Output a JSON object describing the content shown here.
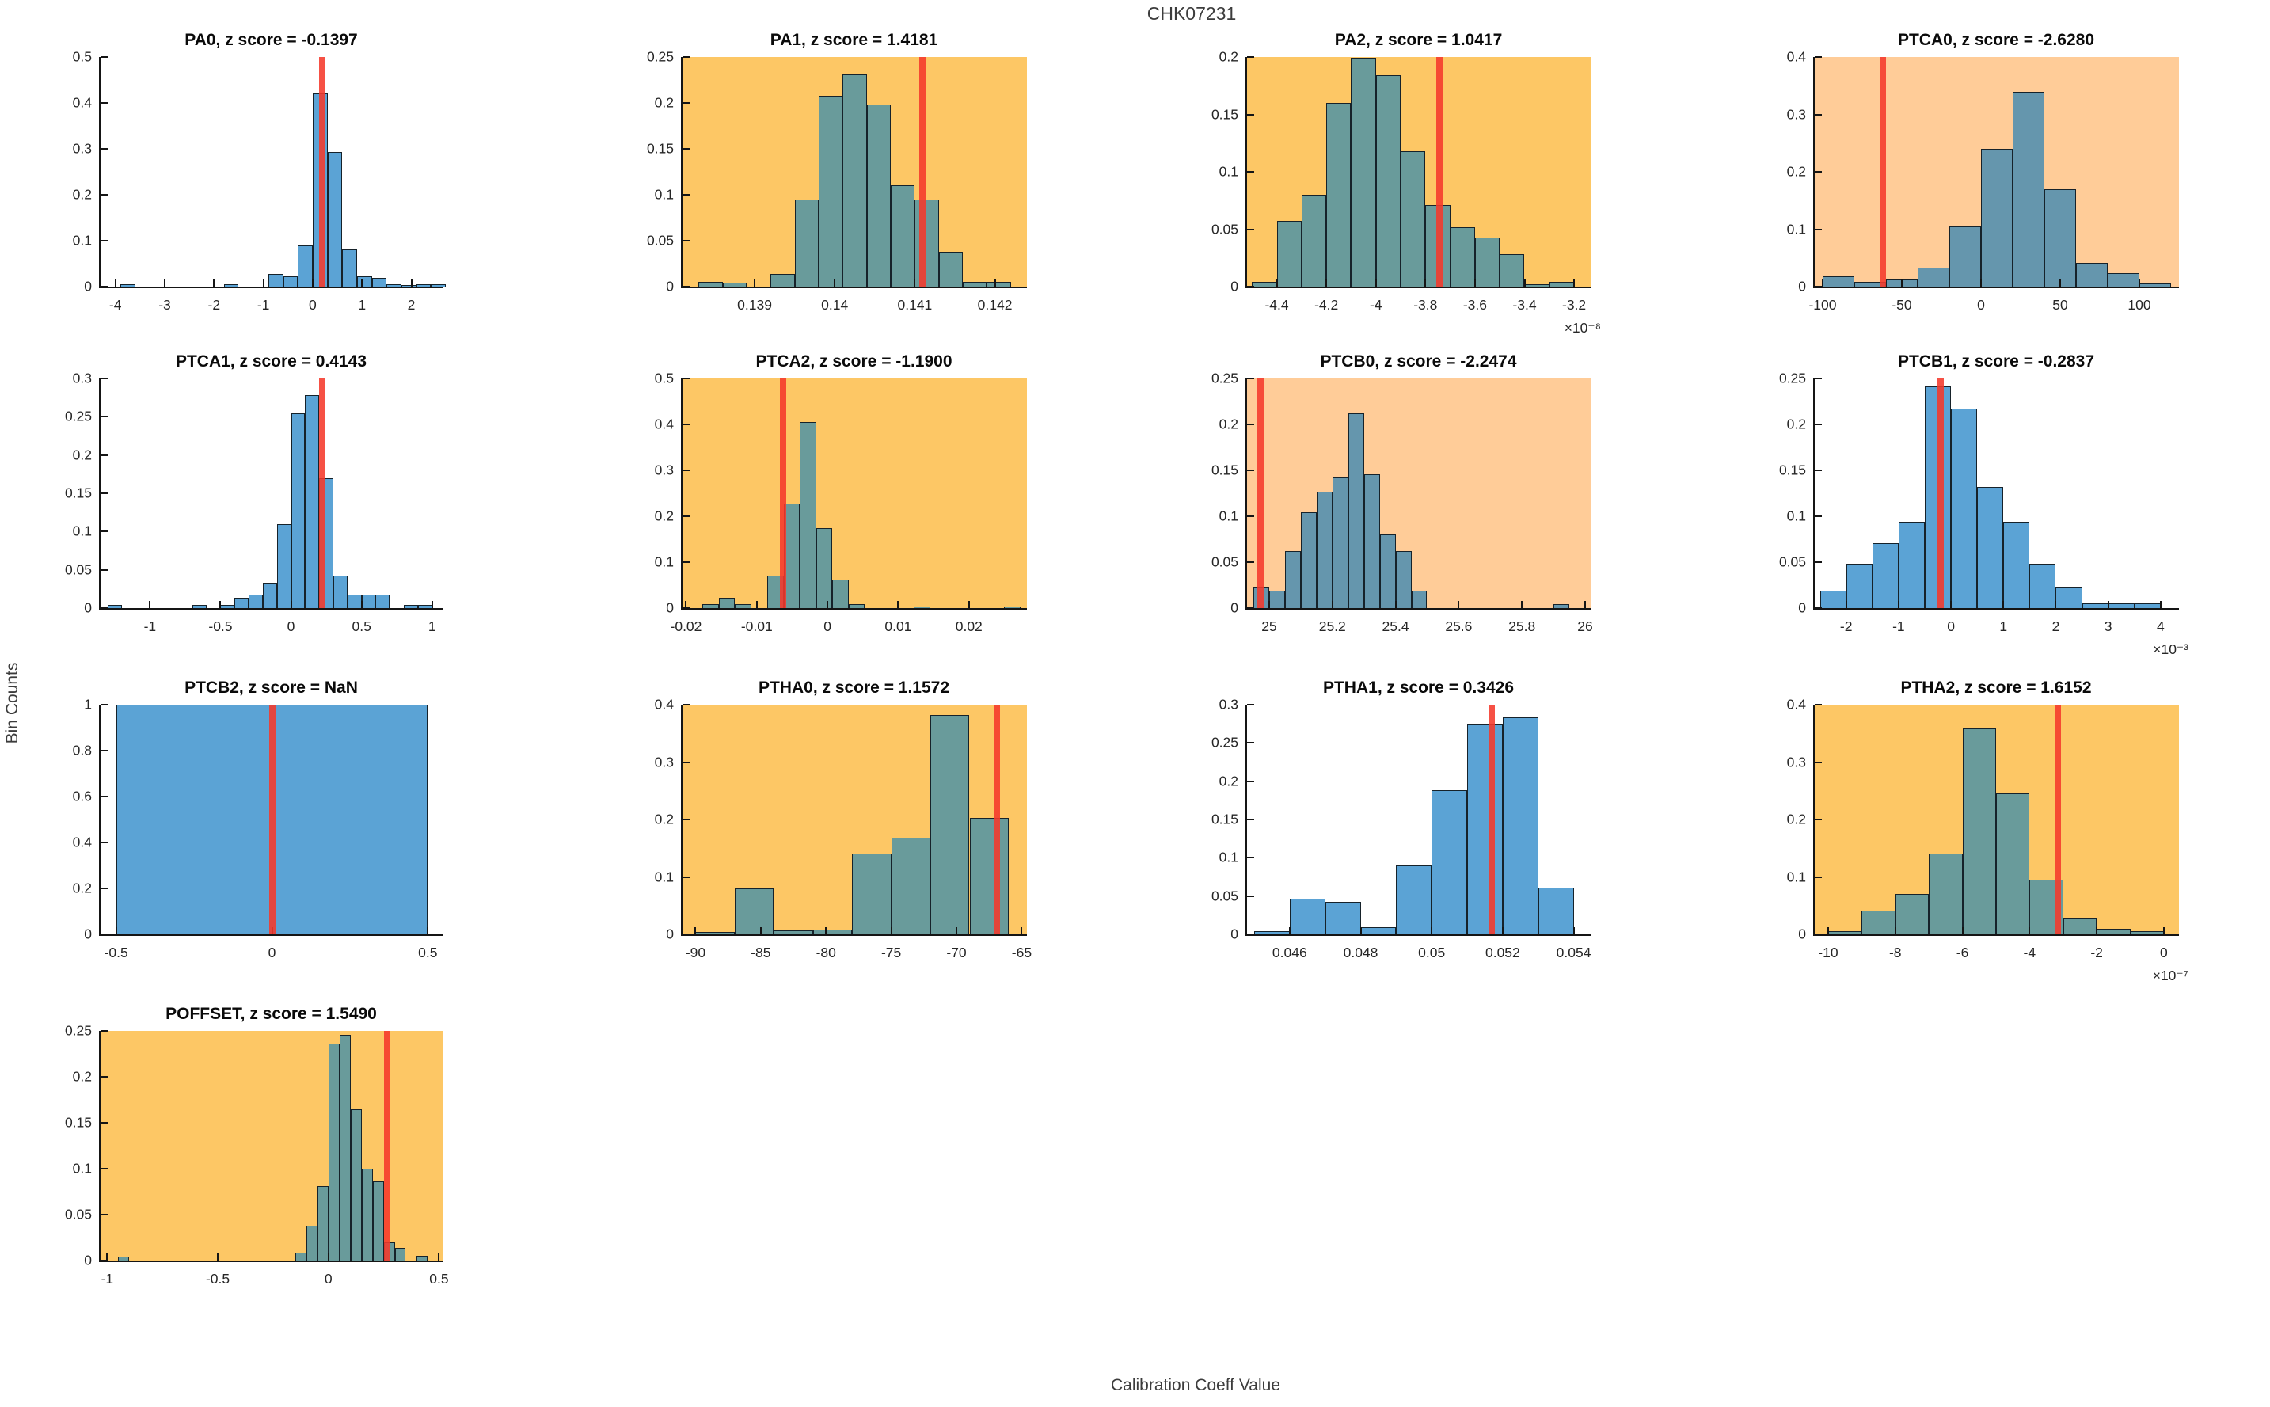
{
  "figure": {
    "title": "CHK07231",
    "xlabel": "Calibration Coeff Value",
    "ylabel": "Bin Counts"
  },
  "colors": {
    "bg_white": "#ffffff",
    "bg_gold": "#fdc765",
    "bg_peach": "#ffcc98",
    "bar_on_white": "#5ba3d5",
    "bar_on_gold": "#699b9b",
    "bar_on_peach": "#6596ad",
    "bar_edge": "#16222a",
    "red_line": "#f5392b",
    "axis": "#151515",
    "tick_text": "#262626",
    "title_text": "#0a0a0a",
    "figure_text": "#3c3c3c"
  },
  "chart_data": [
    {
      "type": "histogram",
      "label": "PA0",
      "z_score": "-0.1397",
      "background": "white",
      "xlim": [
        -4.3,
        2.65
      ],
      "ylim": [
        0,
        0.5
      ],
      "xticks": [
        -4,
        -3,
        -2,
        -1,
        0,
        1,
        2
      ],
      "yticks": [
        0,
        0.1,
        0.2,
        0.3,
        0.4,
        0.5
      ],
      "x_exponent": null,
      "red_line_x": 0.19,
      "bin_width": 0.3,
      "bins": [
        [
          -3.9,
          0.005
        ],
        [
          -1.8,
          0.005
        ],
        [
          -0.9,
          0.028
        ],
        [
          -0.6,
          0.022
        ],
        [
          -0.3,
          0.09
        ],
        [
          0,
          0.42
        ],
        [
          0.3,
          0.293
        ],
        [
          0.6,
          0.081
        ],
        [
          0.9,
          0.022
        ],
        [
          1.2,
          0.019
        ],
        [
          1.5,
          0.005
        ],
        [
          1.8,
          0.004
        ],
        [
          2.1,
          0.005
        ],
        [
          2.4,
          0.005
        ]
      ]
    },
    {
      "type": "histogram",
      "label": "PA1",
      "z_score": "1.4181",
      "background": "gold",
      "xlim": [
        0.1381,
        0.1424
      ],
      "ylim": [
        0,
        0.25
      ],
      "xticks": [
        0.139,
        0.14,
        0.141,
        0.142
      ],
      "yticks": [
        0,
        0.05,
        0.1,
        0.15,
        0.2,
        0.25
      ],
      "x_exponent": null,
      "red_line_x": 0.1411,
      "bin_width": 0.0003,
      "bins": [
        [
          0.1383,
          0.005
        ],
        [
          0.1386,
          0.004
        ],
        [
          0.1392,
          0.014
        ],
        [
          0.1395,
          0.095
        ],
        [
          0.1398,
          0.208
        ],
        [
          0.1401,
          0.231
        ],
        [
          0.1404,
          0.198
        ],
        [
          0.1407,
          0.11
        ],
        [
          0.141,
          0.095
        ],
        [
          0.1413,
          0.038
        ],
        [
          0.1416,
          0.005
        ],
        [
          0.1419,
          0.005
        ]
      ]
    },
    {
      "type": "histogram",
      "label": "PA2",
      "z_score": "1.0417",
      "background": "gold",
      "xlim": [
        -4.52,
        -3.13
      ],
      "ylim": [
        0,
        0.2
      ],
      "xticks": [
        -4.4,
        -4.2,
        -4,
        -3.8,
        -3.6,
        -3.4,
        -3.2
      ],
      "yticks": [
        0,
        0.05,
        0.1,
        0.15,
        0.2
      ],
      "x_exponent": "×10⁻⁸",
      "red_line_x": -3.745,
      "bin_width": 0.1,
      "bins": [
        [
          -4.5,
          0.004
        ],
        [
          -4.4,
          0.057
        ],
        [
          -4.3,
          0.08
        ],
        [
          -4.2,
          0.16
        ],
        [
          -4.1,
          0.199
        ],
        [
          -4.0,
          0.184
        ],
        [
          -3.9,
          0.118
        ],
        [
          -3.8,
          0.071
        ],
        [
          -3.7,
          0.052
        ],
        [
          -3.6,
          0.043
        ],
        [
          -3.5,
          0.028
        ],
        [
          -3.4,
          0.002
        ],
        [
          -3.3,
          0.004
        ]
      ]
    },
    {
      "type": "histogram",
      "label": "PTCA0",
      "z_score": "-2.6280",
      "background": "peach",
      "xlim": [
        -105,
        125
      ],
      "ylim": [
        0,
        0.4
      ],
      "xticks": [
        -100,
        -50,
        0,
        50,
        100
      ],
      "yticks": [
        0,
        0.1,
        0.2,
        0.3,
        0.4
      ],
      "x_exponent": null,
      "red_line_x": -62,
      "bin_width": 20,
      "bins": [
        [
          -100,
          0.018
        ],
        [
          -80,
          0.008
        ],
        [
          -60,
          0.013
        ],
        [
          -40,
          0.033
        ],
        [
          -20,
          0.105
        ],
        [
          0,
          0.24
        ],
        [
          20,
          0.34
        ],
        [
          40,
          0.17
        ],
        [
          60,
          0.042
        ],
        [
          80,
          0.023
        ],
        [
          100,
          0.005
        ]
      ]
    },
    {
      "type": "histogram",
      "label": "PTCA1",
      "z_score": "0.4143",
      "background": "white",
      "xlim": [
        -1.35,
        1.08
      ],
      "ylim": [
        0,
        0.3
      ],
      "xticks": [
        -1,
        -0.5,
        0,
        0.5,
        1
      ],
      "yticks": [
        0,
        0.05,
        0.1,
        0.15,
        0.2,
        0.25,
        0.3
      ],
      "x_exponent": null,
      "red_line_x": 0.22,
      "bin_width": 0.1,
      "bins": [
        [
          -1.3,
          0.004
        ],
        [
          -0.7,
          0.004
        ],
        [
          -0.5,
          0.004
        ],
        [
          -0.4,
          0.013
        ],
        [
          -0.3,
          0.018
        ],
        [
          -0.2,
          0.033
        ],
        [
          -0.1,
          0.11
        ],
        [
          0,
          0.255
        ],
        [
          0.1,
          0.278
        ],
        [
          0.2,
          0.17
        ],
        [
          0.3,
          0.042
        ],
        [
          0.4,
          0.018
        ],
        [
          0.5,
          0.018
        ],
        [
          0.6,
          0.018
        ],
        [
          0.8,
          0.004
        ],
        [
          0.9,
          0.004
        ]
      ]
    },
    {
      "type": "histogram",
      "label": "PTCA2",
      "z_score": "-1.1900",
      "background": "gold",
      "xlim": [
        -0.0205,
        0.0282
      ],
      "ylim": [
        0,
        0.5
      ],
      "xticks": [
        -0.02,
        -0.01,
        0,
        0.01,
        0.02
      ],
      "yticks": [
        0,
        0.1,
        0.2,
        0.3,
        0.4,
        0.5
      ],
      "x_exponent": null,
      "red_line_x": -0.0063,
      "bin_width": 0.0023,
      "bins": [
        [
          -0.0177,
          0.008
        ],
        [
          -0.0154,
          0.022
        ],
        [
          -0.0131,
          0.008
        ],
        [
          -0.0085,
          0.07
        ],
        [
          -0.0062,
          0.227
        ],
        [
          -0.0039,
          0.405
        ],
        [
          -0.0016,
          0.174
        ],
        [
          0.0007,
          0.062
        ],
        [
          0.003,
          0.009
        ],
        [
          0.0122,
          0.004
        ],
        [
          0.025,
          0.004
        ]
      ]
    },
    {
      "type": "histogram",
      "label": "PTCB0",
      "z_score": "-2.2474",
      "background": "peach",
      "xlim": [
        24.93,
        26.02
      ],
      "ylim": [
        0,
        0.25
      ],
      "xticks": [
        25,
        25.2,
        25.4,
        25.6,
        25.8,
        26
      ],
      "yticks": [
        0,
        0.05,
        0.1,
        0.15,
        0.2,
        0.25
      ],
      "x_exponent": null,
      "red_line_x": 24.972,
      "bin_width": 0.05,
      "bins": [
        [
          24.95,
          0.023
        ],
        [
          25.0,
          0.019
        ],
        [
          25.05,
          0.062
        ],
        [
          25.1,
          0.104
        ],
        [
          25.15,
          0.127
        ],
        [
          25.2,
          0.142
        ],
        [
          25.25,
          0.212
        ],
        [
          25.3,
          0.146
        ],
        [
          25.35,
          0.08
        ],
        [
          25.4,
          0.062
        ],
        [
          25.45,
          0.019
        ],
        [
          25.9,
          0.004
        ]
      ]
    },
    {
      "type": "histogram",
      "label": "PTCB1",
      "z_score": "-0.2837",
      "background": "white",
      "xlim": [
        -2.6,
        4.35
      ],
      "ylim": [
        0,
        0.25
      ],
      "xticks": [
        -2,
        -1,
        0,
        1,
        2,
        3,
        4
      ],
      "yticks": [
        0,
        0.05,
        0.1,
        0.15,
        0.2,
        0.25
      ],
      "x_exponent": "×10⁻³",
      "red_line_x": -0.2,
      "bin_width": 0.5,
      "bins": [
        [
          -2.5,
          0.019
        ],
        [
          -2.0,
          0.048
        ],
        [
          -1.5,
          0.071
        ],
        [
          -1.0,
          0.094
        ],
        [
          -0.5,
          0.241
        ],
        [
          0,
          0.217
        ],
        [
          0.5,
          0.132
        ],
        [
          1.0,
          0.094
        ],
        [
          1.5,
          0.048
        ],
        [
          2.0,
          0.023
        ],
        [
          2.5,
          0.005
        ],
        [
          3.0,
          0.005
        ],
        [
          3.5,
          0.005
        ]
      ]
    },
    {
      "type": "histogram",
      "label": "PTCB2",
      "z_score": "NaN",
      "background": "white",
      "xlim": [
        -0.55,
        0.55
      ],
      "ylim": [
        0,
        1
      ],
      "xticks": [
        -0.5,
        0,
        0.5
      ],
      "yticks": [
        0,
        0.2,
        0.4,
        0.6,
        0.8,
        1
      ],
      "x_exponent": null,
      "red_line_x": 0,
      "bin_width": 1.0,
      "bins": [
        [
          -0.5,
          1.0
        ]
      ]
    },
    {
      "type": "histogram",
      "label": "PTHA0",
      "z_score": "1.1572",
      "background": "gold",
      "xlim": [
        -91,
        -64.6
      ],
      "ylim": [
        0,
        0.4
      ],
      "xticks": [
        -90,
        -85,
        -80,
        -75,
        -70,
        -65
      ],
      "yticks": [
        0,
        0.1,
        0.2,
        0.3,
        0.4
      ],
      "x_exponent": null,
      "red_line_x": -66.9,
      "bin_width": 3,
      "bins": [
        [
          -90,
          0.004
        ],
        [
          -87,
          0.08
        ],
        [
          -84,
          0.007
        ],
        [
          -81,
          0.008
        ],
        [
          -78,
          0.141
        ],
        [
          -75,
          0.168
        ],
        [
          -72,
          0.382
        ],
        [
          -69,
          0.203
        ]
      ]
    },
    {
      "type": "histogram",
      "label": "PTHA1",
      "z_score": "0.3426",
      "background": "white",
      "xlim": [
        0.0448,
        0.0545
      ],
      "ylim": [
        0,
        0.3
      ],
      "xticks": [
        0.046,
        0.048,
        0.05,
        0.052,
        0.054
      ],
      "yticks": [
        0,
        0.05,
        0.1,
        0.15,
        0.2,
        0.25,
        0.3
      ],
      "x_exponent": null,
      "red_line_x": 0.0517,
      "bin_width": 0.001,
      "bins": [
        [
          0.045,
          0.004
        ],
        [
          0.046,
          0.047
        ],
        [
          0.047,
          0.042
        ],
        [
          0.048,
          0.009
        ],
        [
          0.049,
          0.09
        ],
        [
          0.05,
          0.188
        ],
        [
          0.051,
          0.274
        ],
        [
          0.052,
          0.283
        ],
        [
          0.053,
          0.061
        ]
      ]
    },
    {
      "type": "histogram",
      "label": "PTHA2",
      "z_score": "1.6152",
      "background": "gold",
      "xlim": [
        -10.4,
        0.45
      ],
      "ylim": [
        0,
        0.4
      ],
      "xticks": [
        -10,
        -8,
        -6,
        -4,
        -2,
        0
      ],
      "yticks": [
        0,
        0.1,
        0.2,
        0.3,
        0.4
      ],
      "x_exponent": "×10⁻⁷",
      "red_line_x": -3.15,
      "bin_width": 1,
      "bins": [
        [
          -10,
          0.005
        ],
        [
          -9,
          0.042
        ],
        [
          -8,
          0.07
        ],
        [
          -7,
          0.141
        ],
        [
          -6,
          0.358
        ],
        [
          -5,
          0.245
        ],
        [
          -4,
          0.095
        ],
        [
          -3,
          0.028
        ],
        [
          -2,
          0.009
        ],
        [
          -1,
          0.005
        ]
      ]
    },
    {
      "type": "histogram",
      "label": "POFFSET",
      "z_score": "1.5490",
      "background": "gold",
      "xlim": [
        -1.03,
        0.52
      ],
      "ylim": [
        0,
        0.25
      ],
      "xticks": [
        -1,
        -0.5,
        0,
        0.5
      ],
      "yticks": [
        0,
        0.05,
        0.1,
        0.15,
        0.2,
        0.25
      ],
      "x_exponent": null,
      "red_line_x": 0.265,
      "bin_width": 0.05,
      "bins": [
        [
          -0.95,
          0.004
        ],
        [
          -0.15,
          0.009
        ],
        [
          -0.1,
          0.038
        ],
        [
          -0.05,
          0.081
        ],
        [
          0,
          0.236
        ],
        [
          0.05,
          0.246
        ],
        [
          0.1,
          0.165
        ],
        [
          0.15,
          0.1
        ],
        [
          0.2,
          0.086
        ],
        [
          0.25,
          0.02
        ],
        [
          0.3,
          0.014
        ],
        [
          0.4,
          0.005
        ]
      ]
    }
  ]
}
